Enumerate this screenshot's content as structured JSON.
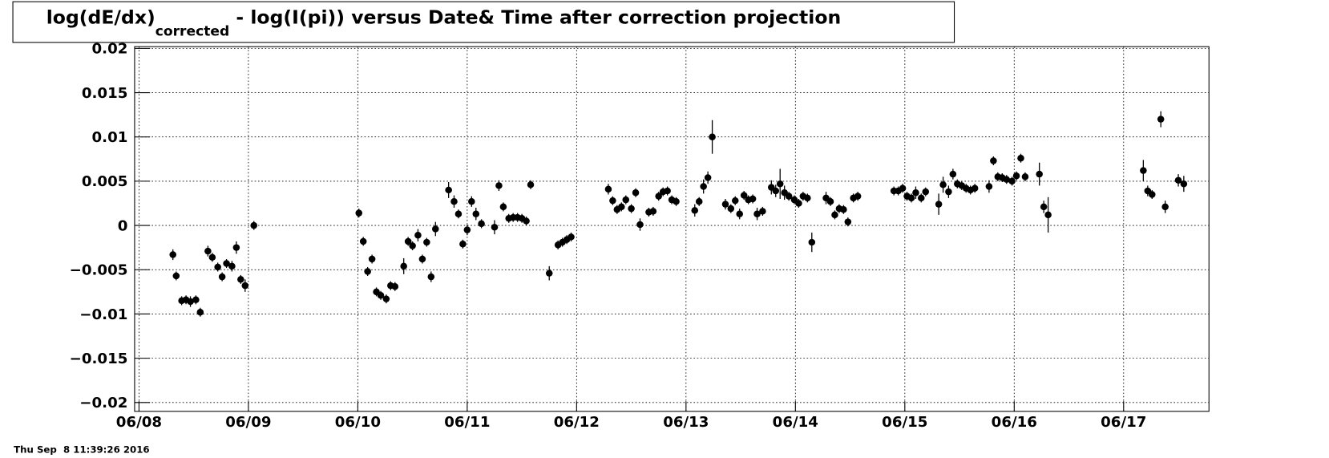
{
  "chart_data": {
    "type": "scatter",
    "title": "log(dE/dx)",
    "title_subscript": "corrected",
    "title_rest": " - log(I(pi)) versus Date& Time after correction projection",
    "timestamp": "Thu Sep  8 11:39:26 2016",
    "color": "#000000",
    "grid": true,
    "xlim": [
      -0.04,
      9.78
    ],
    "xticks": [
      {
        "value": 0,
        "label": "06/08"
      },
      {
        "value": 1,
        "label": "06/09"
      },
      {
        "value": 2,
        "label": "06/10"
      },
      {
        "value": 3,
        "label": "06/11"
      },
      {
        "value": 4,
        "label": "06/12"
      },
      {
        "value": 5,
        "label": "06/13"
      },
      {
        "value": 6,
        "label": "06/14"
      },
      {
        "value": 7,
        "label": "06/15"
      },
      {
        "value": 8,
        "label": "06/16"
      },
      {
        "value": 9,
        "label": "06/17"
      }
    ],
    "ylim": [
      -0.021,
      0.0202
    ],
    "yticks": [
      0.02,
      0.015,
      0.01,
      0.005,
      0,
      {
        "value": -0.005,
        "label": "−0.005"
      },
      {
        "value": -0.01,
        "label": "−0.01"
      },
      {
        "value": -0.015,
        "label": "−0.015"
      },
      {
        "value": -0.02,
        "label": "−0.02"
      }
    ],
    "x": [
      0.31,
      0.34,
      0.39,
      0.43,
      0.47,
      0.52,
      0.56,
      0.63,
      0.67,
      0.72,
      0.76,
      0.8,
      0.85,
      0.89,
      0.93,
      0.97,
      1.05,
      2.01,
      2.05,
      2.09,
      2.13,
      2.17,
      2.21,
      2.26,
      2.3,
      2.34,
      2.42,
      2.46,
      2.5,
      2.55,
      2.59,
      2.63,
      2.67,
      2.71,
      2.83,
      2.88,
      2.92,
      2.96,
      3.0,
      3.04,
      3.08,
      3.13,
      3.25,
      3.29,
      3.33,
      3.38,
      3.42,
      3.46,
      3.5,
      3.54,
      3.58,
      3.75,
      3.83,
      3.87,
      3.91,
      3.95,
      4.29,
      4.33,
      4.37,
      4.41,
      4.45,
      4.5,
      4.54,
      4.58,
      4.66,
      4.7,
      4.75,
      4.79,
      4.83,
      4.87,
      4.91,
      5.08,
      5.12,
      5.16,
      5.2,
      5.24,
      5.36,
      5.41,
      5.45,
      5.49,
      5.53,
      5.57,
      5.61,
      5.65,
      5.7,
      5.78,
      5.82,
      5.86,
      5.9,
      5.94,
      5.99,
      6.03,
      6.07,
      6.11,
      6.15,
      6.28,
      6.32,
      6.36,
      6.4,
      6.44,
      6.48,
      6.53,
      6.57,
      6.9,
      6.94,
      6.98,
      7.02,
      7.06,
      7.1,
      7.15,
      7.19,
      7.31,
      7.35,
      7.4,
      7.44,
      7.48,
      7.52,
      7.56,
      7.6,
      7.64,
      7.77,
      7.81,
      7.85,
      7.89,
      7.93,
      7.98,
      8.02,
      8.06,
      8.1,
      8.23,
      8.27,
      8.31,
      9.18,
      9.22,
      9.26,
      9.34,
      9.38,
      9.5,
      9.55
    ],
    "values": [
      -0.0033,
      -0.0057,
      -0.0085,
      -0.0084,
      -0.0086,
      -0.0084,
      -0.0098,
      -0.0029,
      -0.0036,
      -0.0047,
      -0.0058,
      -0.0043,
      -0.0046,
      -0.0025,
      -0.0061,
      -0.0068,
      0.0,
      0.0014,
      -0.0018,
      -0.0052,
      -0.0038,
      -0.0075,
      -0.0079,
      -0.0083,
      -0.0068,
      -0.0069,
      -0.0046,
      -0.0018,
      -0.0023,
      -0.0011,
      -0.0038,
      -0.0019,
      -0.0058,
      -0.0004,
      0.004,
      0.0027,
      0.0013,
      -0.0021,
      -0.0005,
      0.0027,
      0.0013,
      0.0002,
      -0.0002,
      0.0045,
      0.0021,
      0.0008,
      0.0009,
      0.0009,
      0.0008,
      0.0005,
      0.0046,
      -0.0054,
      -0.0022,
      -0.0019,
      -0.0016,
      -0.0013,
      0.0041,
      0.0028,
      0.0018,
      0.0021,
      0.0029,
      0.0019,
      0.0037,
      0.0001,
      0.0015,
      0.0016,
      0.0033,
      0.0038,
      0.0039,
      0.0029,
      0.0027,
      0.0017,
      0.0027,
      0.0044,
      0.0054,
      0.01,
      0.0024,
      0.0019,
      0.0028,
      0.0013,
      0.0034,
      0.0029,
      0.003,
      0.0013,
      0.0016,
      0.0043,
      0.0039,
      0.0047,
      0.0037,
      0.0033,
      0.0029,
      0.0025,
      0.0033,
      0.0031,
      -0.0019,
      0.0031,
      0.0027,
      0.0012,
      0.0019,
      0.0018,
      0.0004,
      0.0031,
      0.0033,
      0.0039,
      0.0039,
      0.0042,
      0.0033,
      0.0031,
      0.0037,
      0.0031,
      0.0038,
      0.0024,
      0.0046,
      0.0038,
      0.0058,
      0.0047,
      0.0045,
      0.0042,
      0.004,
      0.0042,
      0.0044,
      0.0073,
      0.0055,
      0.0054,
      0.0052,
      0.005,
      0.0056,
      0.0076,
      0.0055,
      0.0058,
      0.0021,
      0.0012,
      0.0062,
      0.0039,
      0.0035,
      0.012,
      0.0021,
      0.0051,
      0.0047
    ],
    "errors": [
      0.0006,
      0.0005,
      0.0005,
      0.0005,
      0.0006,
      0.0005,
      0.0005,
      0.0006,
      0.0005,
      0.0005,
      0.0005,
      0.0005,
      0.0006,
      0.0007,
      0.0005,
      0.0007,
      0.0005,
      0.0005,
      0.0005,
      0.0005,
      0.0005,
      0.0005,
      0.0005,
      0.0005,
      0.0005,
      0.0005,
      0.0009,
      0.0005,
      0.0005,
      0.0007,
      0.0005,
      0.0005,
      0.0006,
      0.0008,
      0.0009,
      0.0007,
      0.0005,
      0.0005,
      0.0006,
      0.0006,
      0.0007,
      0.0005,
      0.0008,
      0.0006,
      0.0005,
      0.0005,
      0.0005,
      0.0005,
      0.0005,
      0.0005,
      0.0005,
      0.0008,
      0.0005,
      0.0005,
      0.0005,
      0.0005,
      0.0006,
      0.0005,
      0.0005,
      0.0005,
      0.0005,
      0.0005,
      0.0005,
      0.0007,
      0.0005,
      0.0005,
      0.0005,
      0.0005,
      0.0005,
      0.0005,
      0.0005,
      0.0007,
      0.0005,
      0.0008,
      0.0007,
      0.0019,
      0.0006,
      0.0005,
      0.0005,
      0.0006,
      0.0005,
      0.0005,
      0.0005,
      0.0007,
      0.0005,
      0.0008,
      0.0007,
      0.0017,
      0.0008,
      0.0005,
      0.0005,
      0.0005,
      0.0005,
      0.0005,
      0.0011,
      0.0007,
      0.0005,
      0.0005,
      0.0005,
      0.0005,
      0.0005,
      0.0005,
      0.0005,
      0.0005,
      0.0005,
      0.0005,
      0.0005,
      0.0005,
      0.0007,
      0.0005,
      0.0005,
      0.0012,
      0.0009,
      0.0007,
      0.0006,
      0.0005,
      0.0005,
      0.0005,
      0.0005,
      0.0005,
      0.0007,
      0.0005,
      0.0005,
      0.0005,
      0.0005,
      0.0005,
      0.0005,
      0.0005,
      0.0005,
      0.0013,
      0.0007,
      0.002,
      0.0012,
      0.0006,
      0.0005,
      0.0009,
      0.0007,
      0.0007,
      0.0009
    ]
  }
}
